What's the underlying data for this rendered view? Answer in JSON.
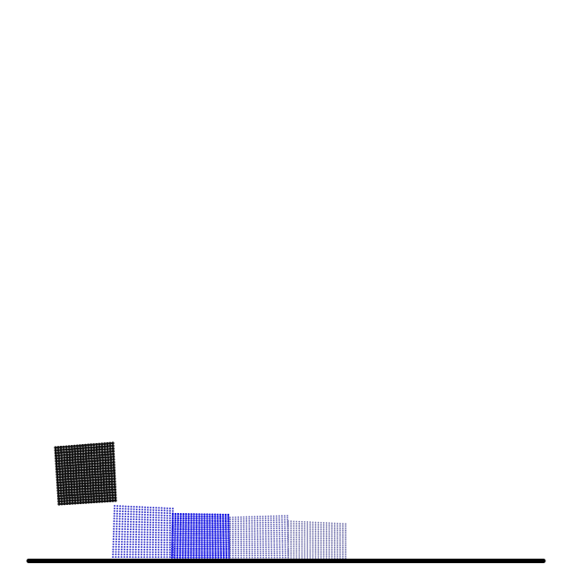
{
  "scene": {
    "background": "#ffffff"
  },
  "ground": {
    "color": "#000000"
  },
  "bodies": [
    {
      "id": "held-block",
      "color": "#111111",
      "grid": 22,
      "dot": 1.6
    },
    {
      "id": "stacked-block-1",
      "color": "#3030c8",
      "grid": 22,
      "dot": 1.0
    },
    {
      "id": "stacked-block-2",
      "color": "#1414e0",
      "grid": 22,
      "dot": 1.2
    },
    {
      "id": "stacked-block-3",
      "color": "#5a5ab0",
      "grid": 22,
      "dot": 0.9
    },
    {
      "id": "stacked-block-4",
      "color": "#6e6ea8",
      "grid": 22,
      "dot": 0.85
    }
  ]
}
